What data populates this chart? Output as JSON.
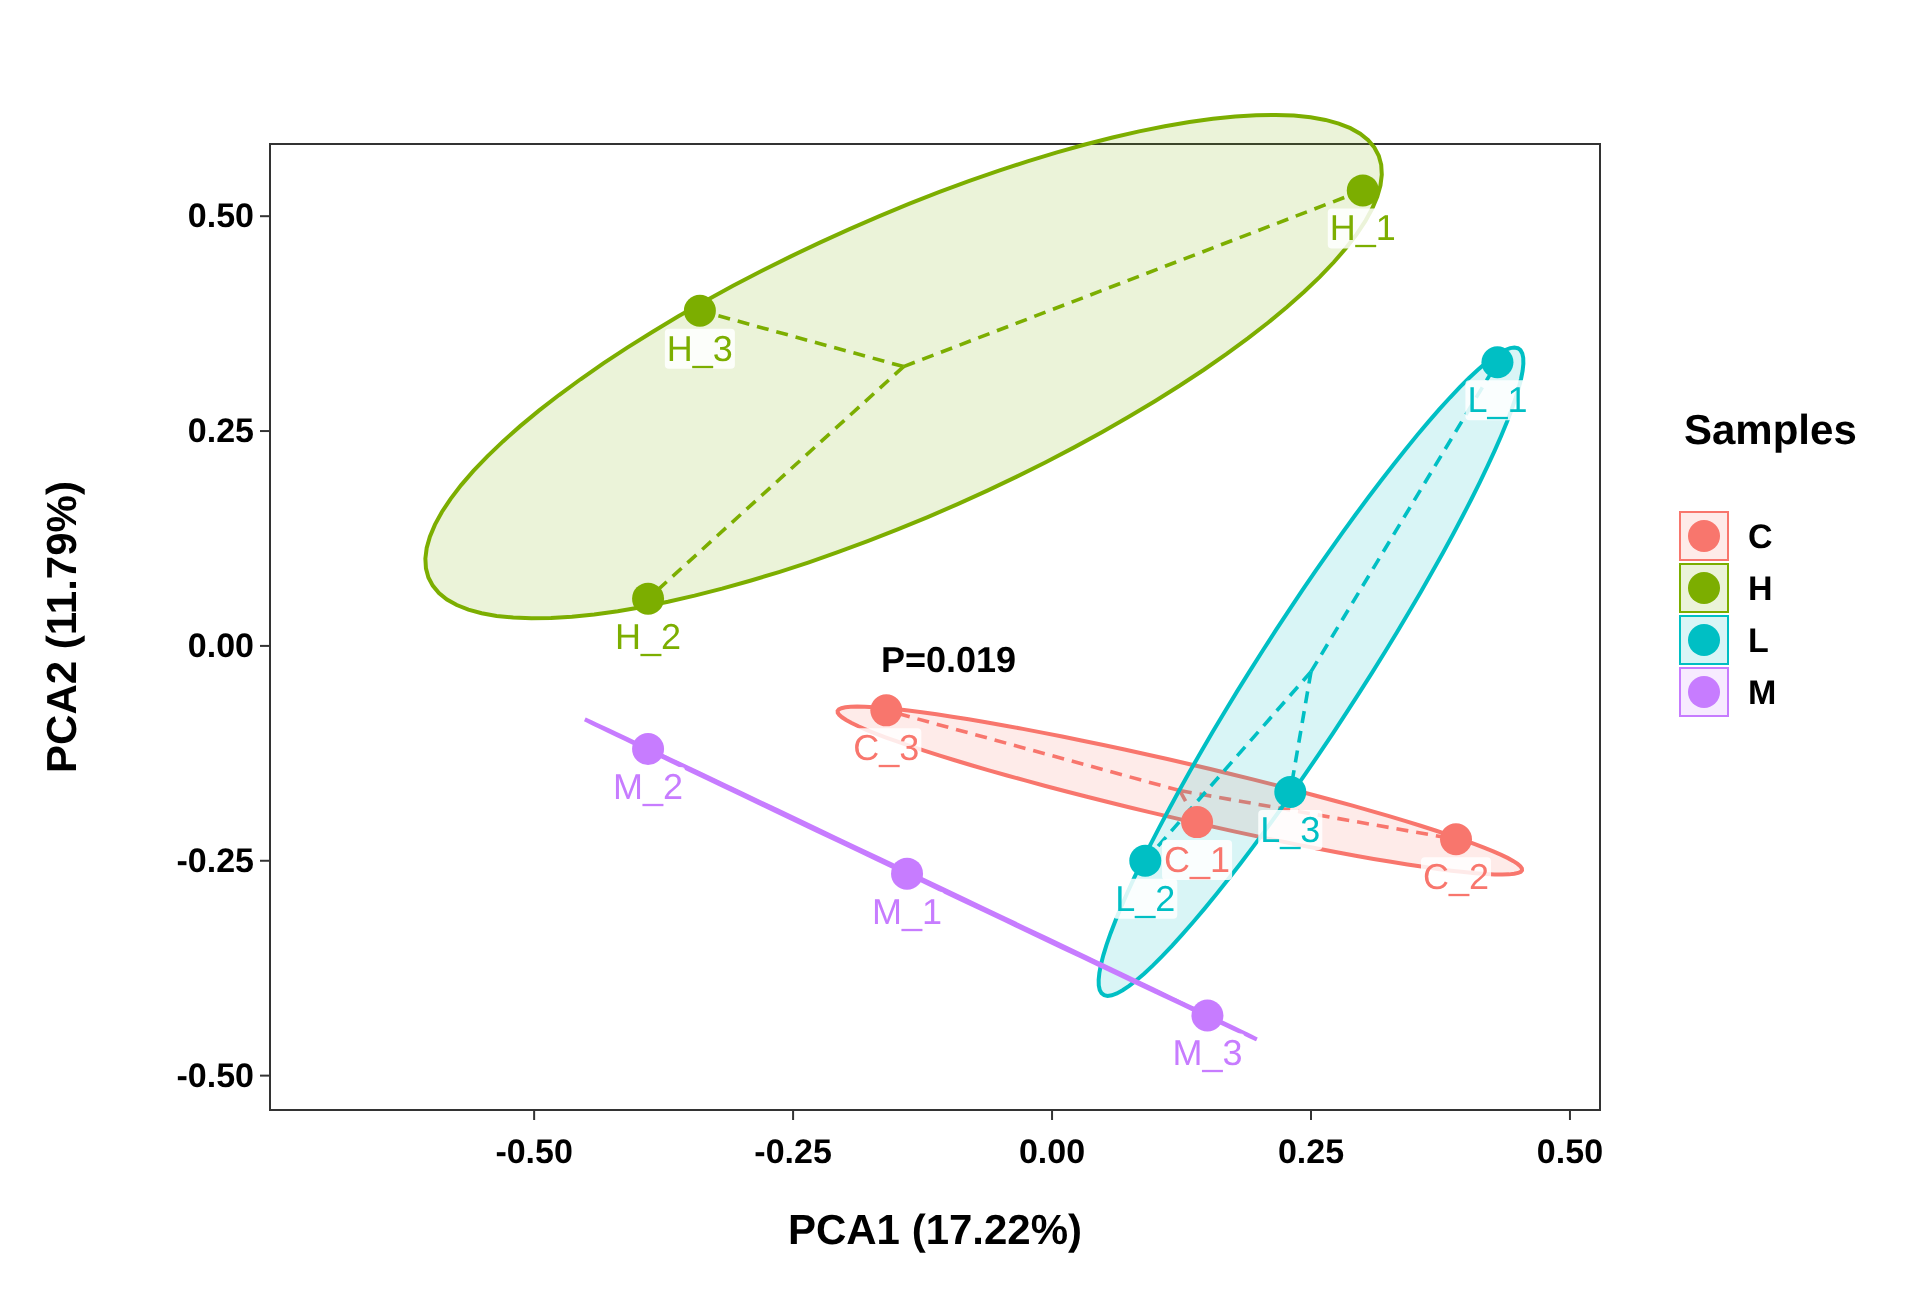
{
  "chart_data": {
    "type": "scatter",
    "xlabel": "PCA1 (17.22%)",
    "ylabel": "PCA2 (11.79%)",
    "legend_title": "Samples",
    "legend": "right",
    "grid": false,
    "marker": "circle",
    "xlim": [
      -0.755,
      0.529
    ],
    "ylim": [
      -0.54,
      0.584
    ],
    "xticks": [
      {
        "value": -0.5,
        "label": "-0.50"
      },
      {
        "value": -0.25,
        "label": "-0.25"
      },
      {
        "value": 0,
        "label": "0.00"
      },
      {
        "value": 0.25,
        "label": "0.25"
      },
      {
        "value": 0.5,
        "label": "0.50"
      }
    ],
    "yticks": [
      {
        "value": -0.5,
        "label": "-0.50"
      },
      {
        "value": -0.25,
        "label": "-0.25"
      },
      {
        "value": 0,
        "label": "0.00"
      },
      {
        "value": 0.25,
        "label": "0.25"
      },
      {
        "value": 0.5,
        "label": "0.50"
      }
    ],
    "annotations": [
      "P=0.019",
      {
        "text": "C_1",
        "x": 0.14,
        "y": -0.205
      },
      {
        "text": "C_2",
        "x": 0.39,
        "y": -0.225
      },
      {
        "text": "C_3",
        "x": -0.16,
        "y": -0.075
      },
      {
        "text": "H_1",
        "x": 0.3,
        "y": 0.53
      },
      {
        "text": "H_2",
        "x": -0.39,
        "y": 0.055
      },
      {
        "text": "H_3",
        "x": -0.34,
        "y": 0.39
      },
      {
        "text": "L_1",
        "x": 0.43,
        "y": 0.33
      },
      {
        "text": "L_2",
        "x": 0.09,
        "y": -0.25
      },
      {
        "text": "L_3",
        "x": 0.23,
        "y": -0.17
      },
      {
        "text": "M_1",
        "x": -0.14,
        "y": -0.265
      },
      {
        "text": "M_2",
        "x": -0.39,
        "y": -0.12
      },
      {
        "text": "M_3",
        "x": 0.15,
        "y": -0.43
      }
    ],
    "series": [
      {
        "name": "C",
        "color": "#f8766d",
        "x": [
          0.14,
          0.39,
          -0.16
        ],
        "values": [
          -0.205,
          -0.225,
          -0.075
        ]
      },
      {
        "name": "H",
        "color": "#7cae00",
        "x": [
          0.3,
          -0.39,
          -0.34
        ],
        "values": [
          0.53,
          0.055,
          0.39
        ]
      },
      {
        "name": "L",
        "color": "#00bfc4",
        "x": [
          0.43,
          0.09,
          0.23
        ],
        "values": [
          0.33,
          -0.25,
          -0.17
        ]
      },
      {
        "name": "M",
        "color": "#c77cff",
        "x": [
          -0.14,
          -0.39,
          0.15
        ],
        "values": [
          -0.265,
          -0.12,
          -0.43
        ]
      }
    ]
  }
}
